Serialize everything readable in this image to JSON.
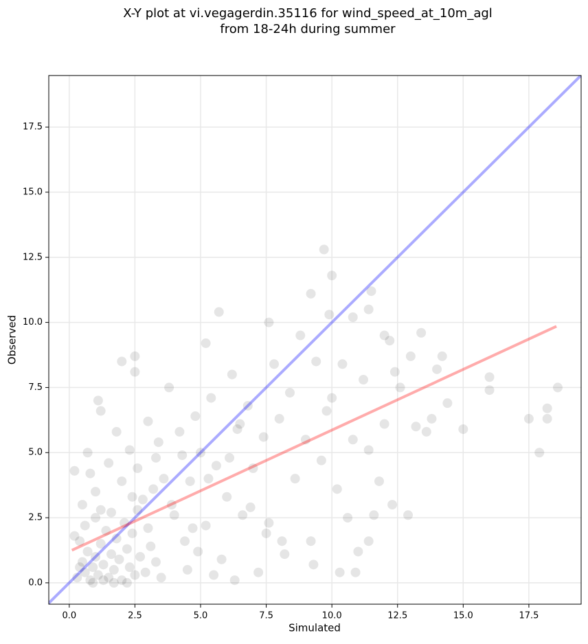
{
  "chart_data": {
    "type": "scatter",
    "title": "X-Y plot at vi.vegagerdin.35116 for wind_speed_at_10m_agl",
    "subtitle": "from 18-24h during summer",
    "x_label": "Simulated",
    "y_label": "Observed",
    "xlim": [
      -0.78,
      19.49
    ],
    "ylim": [
      -0.82,
      19.48
    ],
    "xticks": [
      {
        "value": 0,
        "label": "0.0"
      },
      2.5,
      {
        "value": 5,
        "label": "5.0"
      },
      7.5,
      {
        "value": 10,
        "label": "10.0"
      },
      12.5,
      {
        "value": 15,
        "label": "15.0"
      },
      17.5
    ],
    "yticks": [
      {
        "value": 0,
        "label": "0.0"
      },
      2.5,
      {
        "value": 5,
        "label": "5.0"
      },
      7.5,
      {
        "value": 10,
        "label": "10.0"
      },
      12.5,
      {
        "value": 15,
        "label": "15.0"
      },
      17.5
    ],
    "grid": true,
    "series": [
      {
        "color": "#000000",
        "opacity": 0.1,
        "x": [
          0.3,
          0.5,
          0.6,
          0.7,
          0.8,
          0.9,
          1.0,
          1.1,
          1.2,
          1.3,
          1.4,
          1.5,
          1.6,
          1.7,
          1.8,
          1.9,
          2.0,
          2.1,
          2.2,
          2.3,
          2.4,
          2.5,
          2.6,
          2.7,
          2.8,
          2.9,
          3.0,
          3.1,
          3.2,
          3.3,
          0.4,
          0.6,
          0.2,
          0.5,
          0.8,
          0.2,
          0.7,
          1.0,
          1.2,
          1.1,
          1.2,
          1.5,
          1.8,
          2.0,
          2.3,
          2.6,
          3.0,
          3.4,
          3.6,
          3.8,
          4.0,
          4.2,
          4.4,
          4.6,
          4.8,
          5.0,
          5.2,
          5.4,
          5.6,
          5.8,
          6.0,
          6.2,
          6.4,
          6.6,
          6.8,
          7.0,
          7.2,
          7.4,
          7.6,
          7.8,
          8.0,
          8.2,
          8.4,
          8.6,
          8.8,
          9.0,
          9.2,
          9.4,
          9.6,
          9.8,
          10.0,
          10.2,
          10.4,
          10.6,
          10.8,
          11.0,
          11.2,
          11.4,
          11.8,
          12.0,
          12.4,
          12.6,
          13.0,
          13.2,
          13.6,
          13.8,
          14.0,
          14.2,
          14.4,
          3.5,
          4.5,
          5.5,
          6.3,
          4.9,
          2.0,
          2.5,
          2.5,
          5.2,
          5.7,
          7.6,
          9.2,
          9.7,
          10.0,
          9.9,
          10.8,
          11.5,
          11.4,
          12.0,
          12.2,
          13.4,
          15.0,
          16.0,
          16.0,
          17.5,
          17.9,
          18.2,
          18.2,
          18.6,
          10.3,
          10.9,
          12.9,
          12.3,
          11.6,
          11.4,
          9.3,
          8.1,
          7.5,
          6.9,
          0.9,
          1.3,
          1.7,
          2.2,
          0.4,
          1.0,
          1.6,
          2.4,
          3.3,
          4.3,
          3.9,
          4.7,
          5.3,
          6.1,
          6.5
        ],
        "y": [
          0.2,
          0.8,
          0.4,
          1.2,
          0.1,
          0.6,
          1.0,
          0.3,
          1.5,
          0.7,
          2.0,
          0.2,
          1.1,
          0.5,
          1.7,
          0.9,
          0.1,
          2.3,
          1.3,
          0.6,
          1.9,
          0.3,
          2.8,
          1.0,
          3.2,
          0.4,
          2.1,
          1.4,
          3.6,
          0.8,
          1.6,
          2.2,
          1.8,
          3.0,
          4.2,
          4.3,
          5.0,
          3.5,
          2.8,
          7.0,
          6.6,
          4.6,
          5.8,
          3.9,
          5.1,
          4.4,
          6.2,
          5.4,
          4.0,
          7.5,
          2.6,
          5.8,
          1.6,
          3.9,
          6.4,
          5.0,
          2.2,
          7.1,
          4.5,
          0.9,
          3.3,
          8.0,
          5.9,
          2.6,
          6.8,
          4.4,
          0.4,
          5.6,
          2.3,
          8.4,
          6.3,
          1.1,
          7.3,
          4.0,
          9.5,
          5.5,
          1.6,
          8.5,
          4.7,
          6.6,
          7.1,
          3.6,
          8.4,
          2.5,
          5.5,
          1.2,
          7.8,
          5.1,
          3.9,
          6.1,
          8.1,
          7.5,
          8.7,
          6.0,
          5.8,
          6.3,
          8.2,
          8.7,
          6.9,
          0.2,
          0.5,
          0.3,
          0.1,
          1.2,
          8.5,
          8.7,
          8.1,
          9.2,
          10.4,
          10.0,
          11.1,
          12.8,
          11.8,
          10.3,
          10.2,
          11.2,
          10.5,
          9.5,
          9.3,
          9.6,
          5.9,
          7.9,
          7.4,
          6.3,
          5.0,
          6.3,
          6.7,
          7.5,
          0.4,
          0.4,
          2.6,
          3.0,
          2.6,
          1.6,
          0.7,
          1.6,
          1.9,
          2.9,
          0.0,
          0.1,
          0.0,
          0.0,
          0.6,
          2.5,
          2.7,
          3.3,
          4.8,
          4.9,
          3.0,
          2.1,
          4.0,
          4.8,
          6.1
        ]
      }
    ],
    "lines": [
      {
        "color": "#0000ff",
        "opacity": 0.33,
        "x": [
          -0.78,
          19.48
        ],
        "y": [
          -0.78,
          19.48
        ]
      },
      {
        "color": "#ff0000",
        "opacity": 0.33,
        "x": [
          0.1,
          18.55
        ],
        "y": [
          1.25,
          9.85
        ]
      }
    ]
  }
}
